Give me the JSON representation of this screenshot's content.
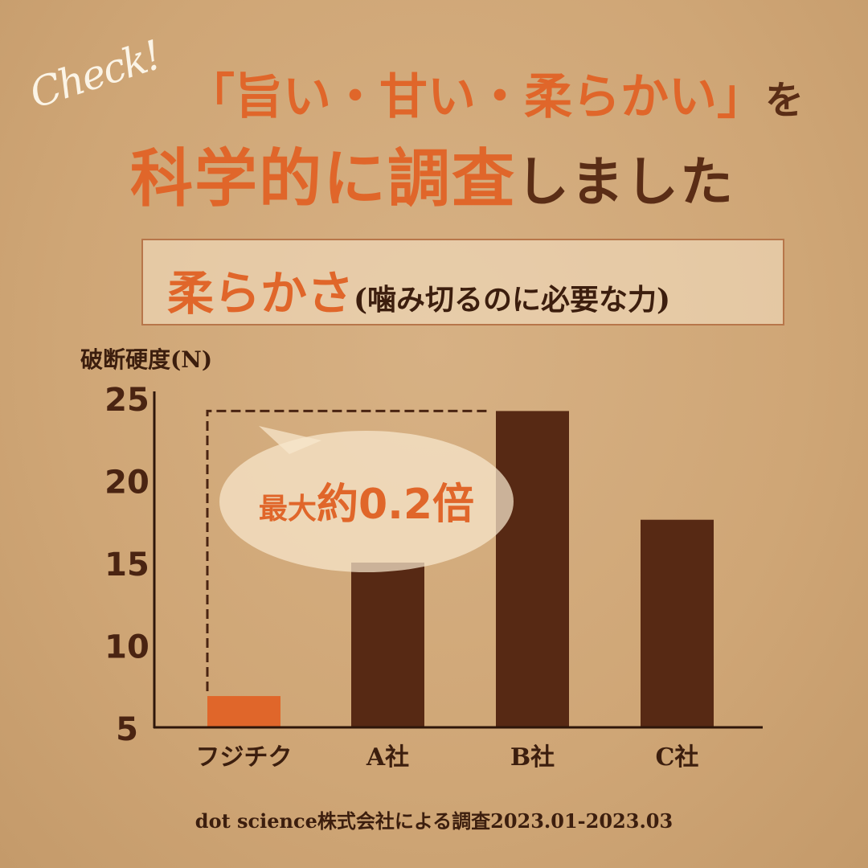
{
  "header": {
    "check": "Check!",
    "line1_orange": "「旨い・甘い・柔らかい」",
    "line1_brown": "を",
    "line2_orange": "科学的に調査",
    "line2_brown": "しました"
  },
  "subtitle": {
    "main": "柔らかさ",
    "note": "(噛み切るのに必要な力)"
  },
  "callout": {
    "prefix": "最大",
    "text": "約0.2倍"
  },
  "footer": "dot science株式会社による調査2023.01-2023.03",
  "colors": {
    "highlight": "#e0662a",
    "bars": "#572914",
    "axis": "#2e160a",
    "background": "#cfa676"
  },
  "chart_data": {
    "type": "bar",
    "ylabel": "破断硬度(N)",
    "ylim": [
      5,
      25
    ],
    "yticks": [
      5,
      10,
      15,
      20,
      25
    ],
    "categories": [
      "フジチク",
      "A社",
      "B社",
      "C社"
    ],
    "values": [
      6.9,
      15,
      24.2,
      17.6
    ],
    "highlight_category": "フジチク",
    "grid": false
  }
}
